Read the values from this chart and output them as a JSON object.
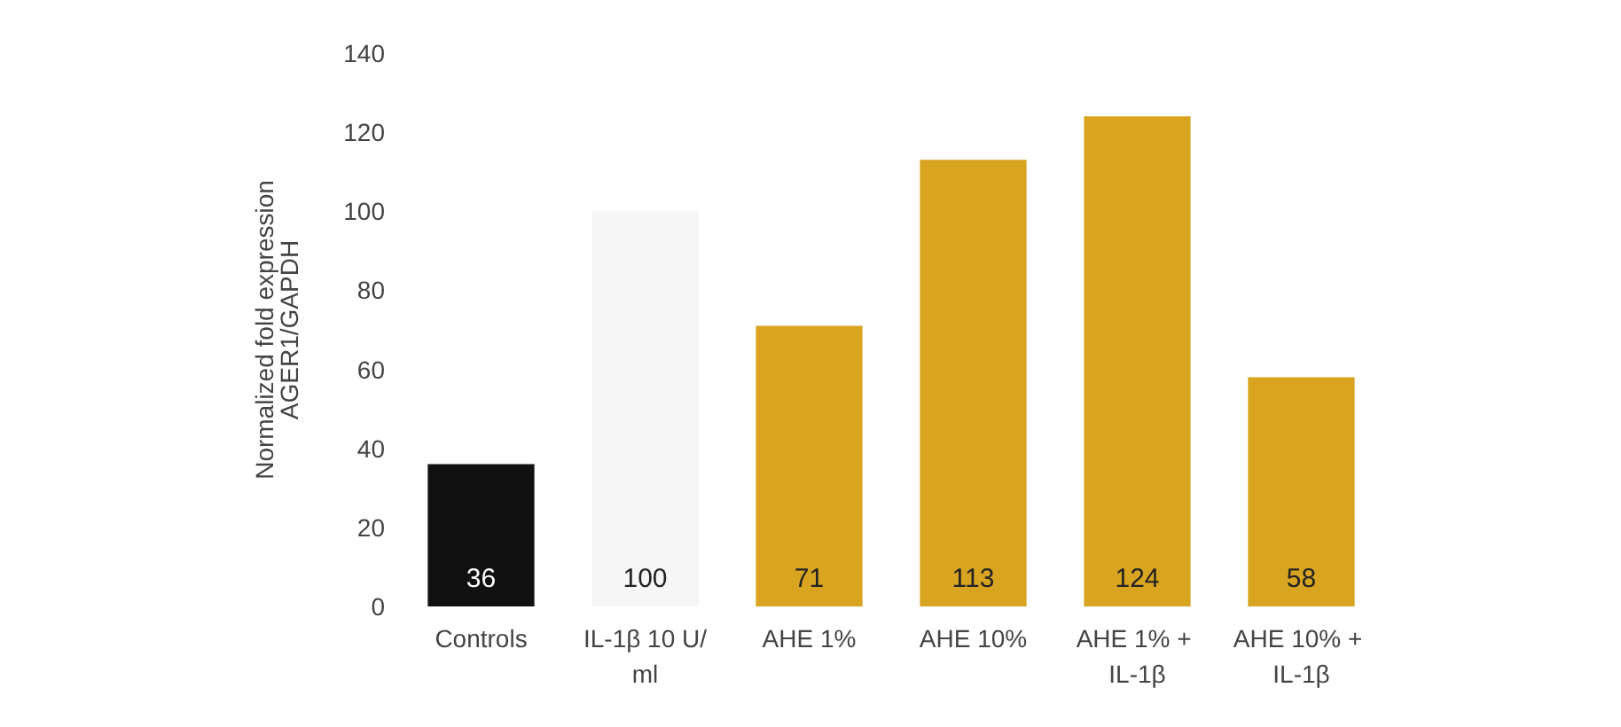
{
  "chart_data": {
    "type": "bar",
    "ylabel": "Normalized fold expression\nAGER1/GAPDH",
    "categories": [
      "Controls",
      "IL-1β 10 U/ml",
      "AHE 1%",
      "AHE 10%",
      "AHE 1% + IL-1β",
      "AHE 10% + IL-1β"
    ],
    "values": [
      36,
      100,
      71,
      113,
      124,
      58
    ],
    "colors": [
      "#111111",
      "#f6f6f6",
      "#d9a521",
      "#d9a521",
      "#d9a521",
      "#d9a521"
    ],
    "ylim": [
      0,
      140
    ],
    "yticks": [
      0,
      20,
      40,
      60,
      80,
      100,
      120,
      140
    ],
    "data_labels": true
  }
}
